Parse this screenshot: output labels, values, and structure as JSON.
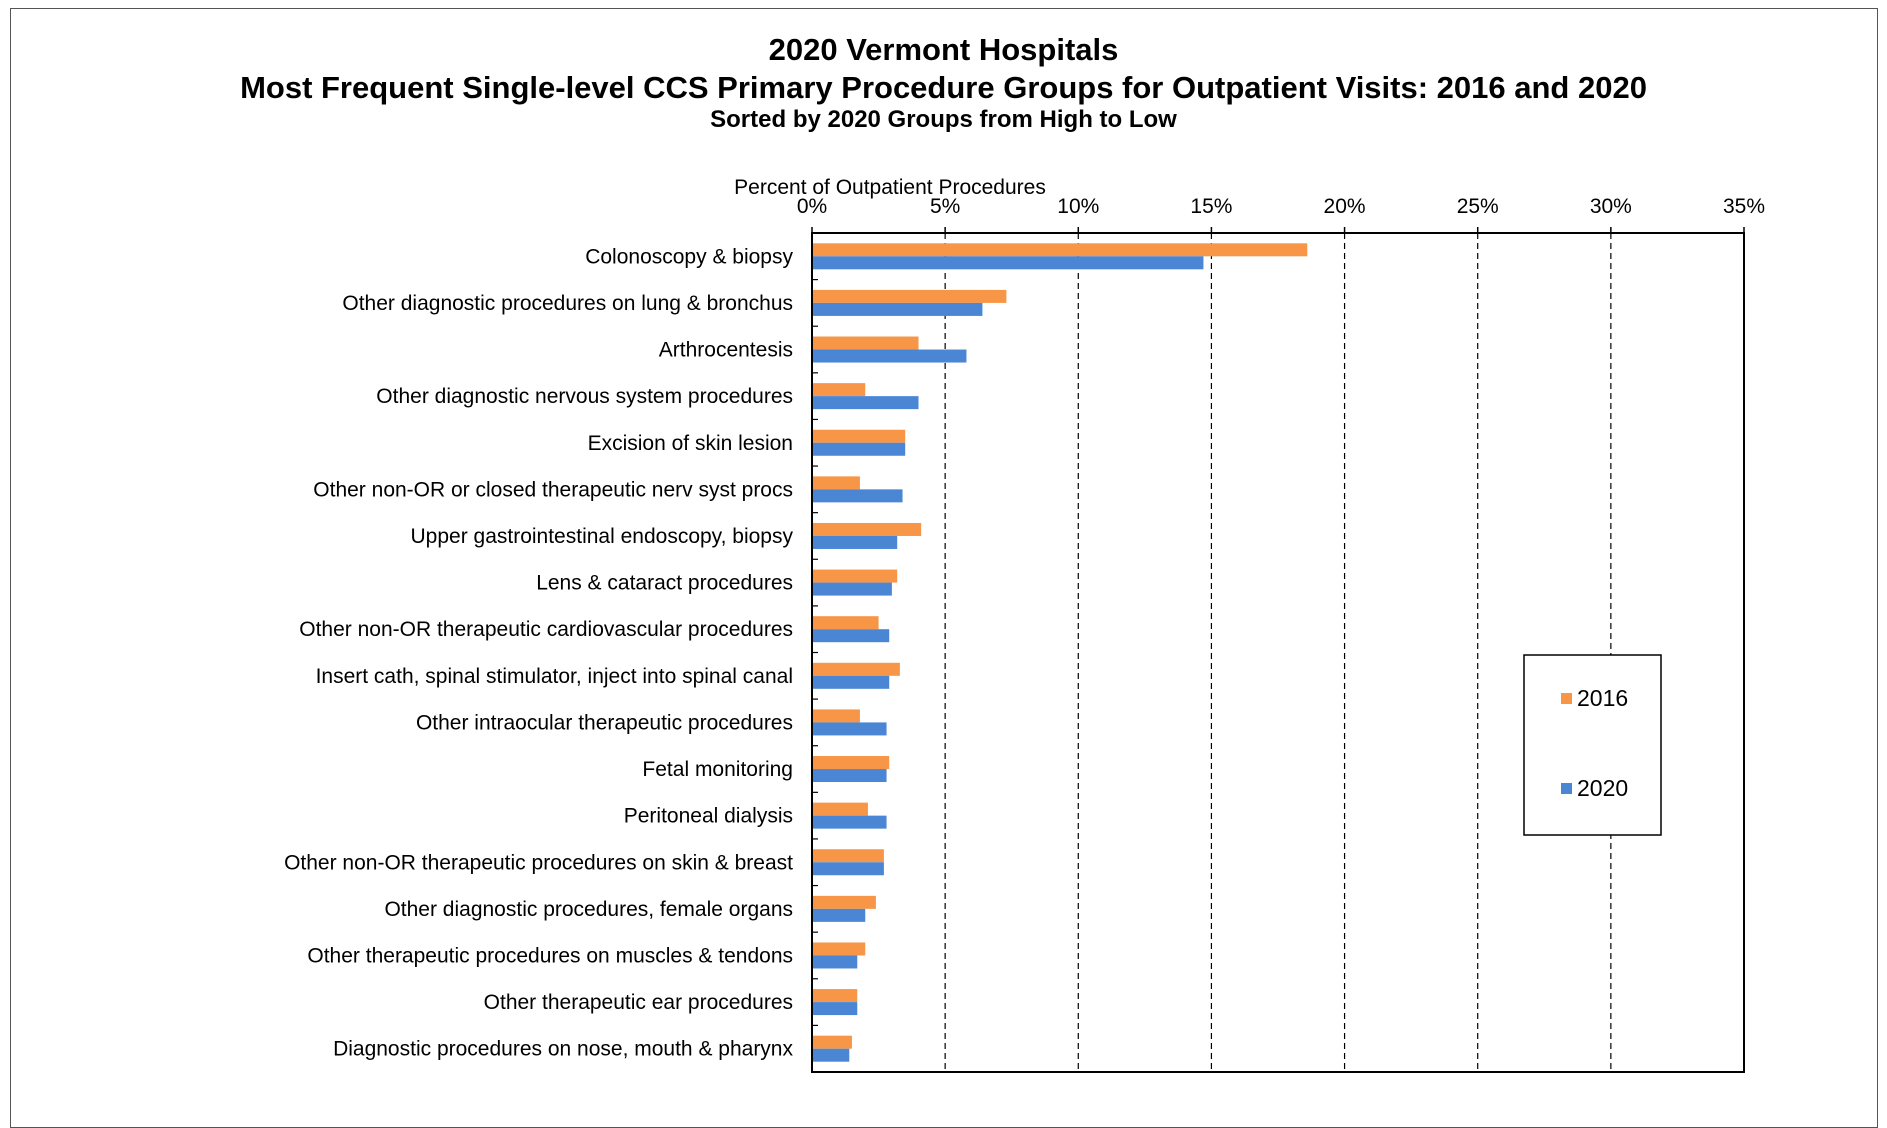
{
  "chart_data": {
    "type": "bar",
    "orientation": "horizontal",
    "title": "2020 Vermont Hospitals",
    "subtitle": "Most Frequent Single-level CCS Primary Procedure Groups for Outpatient Visits:  2016 and 2020",
    "subtitle2": "Sorted by 2020 Groups from High to Low",
    "xlabel": "Percent of Outpatient Procedures",
    "xlim": [
      0,
      35
    ],
    "xticks": [
      "0%",
      "5%",
      "10%",
      "15%",
      "20%",
      "25%",
      "30%",
      "35%"
    ],
    "grid": "vertical dashed",
    "legend_position": "right",
    "categories": [
      "Colonoscopy & biopsy",
      "Other diagnostic procedures on lung & bronchus",
      "Arthrocentesis",
      "Other diagnostic nervous system procedures",
      "Excision of skin lesion",
      "Other non-OR or closed therapeutic nerv syst procs",
      "Upper gastrointestinal endoscopy, biopsy",
      "Lens & cataract procedures",
      "Other non-OR therapeutic cardiovascular procedures",
      "Insert cath, spinal stimulator, inject into spinal canal",
      "Other intraocular therapeutic procedures",
      "Fetal monitoring",
      "Peritoneal dialysis",
      "Other non-OR therapeutic procedures on skin & breast",
      "Other diagnostic procedures, female organs",
      "Other therapeutic procedures on muscles & tendons",
      "Other therapeutic ear procedures",
      "Diagnostic procedures on nose, mouth & pharynx"
    ],
    "series": [
      {
        "name": "2016",
        "color": "#F79646",
        "values": [
          18.6,
          7.3,
          4.0,
          2.0,
          3.5,
          1.8,
          4.1,
          3.2,
          2.5,
          3.3,
          1.8,
          2.9,
          2.1,
          2.7,
          2.4,
          2.0,
          1.7,
          1.5
        ]
      },
      {
        "name": "2020",
        "color": "#4A86D4",
        "values": [
          14.7,
          6.4,
          5.8,
          4.0,
          3.5,
          3.4,
          3.2,
          3.0,
          2.9,
          2.9,
          2.8,
          2.8,
          2.8,
          2.7,
          2.0,
          1.7,
          1.7,
          1.4
        ]
      }
    ]
  }
}
